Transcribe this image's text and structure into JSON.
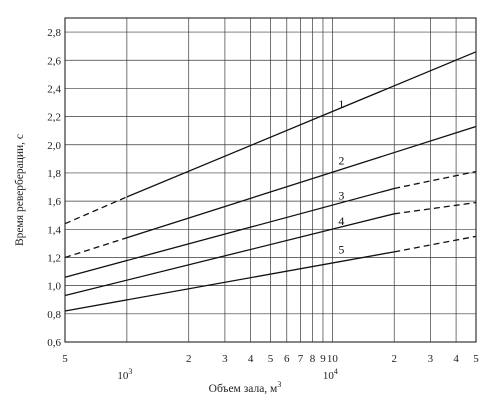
{
  "chart_data": {
    "type": "line",
    "xlabel": "Объем зала, м",
    "xlabel_sup": "3",
    "ylabel": "Время реверберации, с",
    "x_scale": "log",
    "xlim": [
      500,
      50000
    ],
    "ylim": [
      0.6,
      2.9
    ],
    "grid": true,
    "x_ticks": [
      {
        "value": 500,
        "label": "5"
      },
      {
        "value": 1000,
        "label": ""
      },
      {
        "value": 2000,
        "label": "2"
      },
      {
        "value": 3000,
        "label": "3"
      },
      {
        "value": 4000,
        "label": "4"
      },
      {
        "value": 5000,
        "label": "5"
      },
      {
        "value": 6000,
        "label": "6"
      },
      {
        "value": 7000,
        "label": "7"
      },
      {
        "value": 8000,
        "label": "8"
      },
      {
        "value": 9000,
        "label": "9"
      },
      {
        "value": 10000,
        "label": "10"
      },
      {
        "value": 20000,
        "label": "2"
      },
      {
        "value": 30000,
        "label": "3"
      },
      {
        "value": 40000,
        "label": "4"
      },
      {
        "value": 50000,
        "label": "5"
      }
    ],
    "decade_labels": [
      {
        "value": 1000,
        "base": "10",
        "exp": "3"
      },
      {
        "value": 10000,
        "base": "10",
        "exp": "4"
      }
    ],
    "y_ticks": [
      "0,6",
      "0,8",
      "1,0",
      "1,2",
      "1,4",
      "1,6",
      "1,8",
      "2,0",
      "2,2",
      "2,4",
      "2,6",
      "2,8"
    ],
    "y_tick_values": [
      0.6,
      0.8,
      1.0,
      1.2,
      1.4,
      1.6,
      1.8,
      2.0,
      2.2,
      2.4,
      2.6,
      2.8
    ],
    "series": [
      {
        "name": "1",
        "dashed": {
          "x": [
            500,
            1000
          ],
          "y": [
            1.44,
            1.63
          ]
        },
        "solid": {
          "x": [
            1000,
            50000
          ],
          "y": [
            1.63,
            2.66
          ]
        }
      },
      {
        "name": "2",
        "dashed": {
          "x": [
            500,
            1000
          ],
          "y": [
            1.2,
            1.34
          ]
        },
        "solid": {
          "x": [
            1000,
            50000
          ],
          "y": [
            1.34,
            2.13
          ]
        }
      },
      {
        "name": "3",
        "solid": {
          "x": [
            500,
            20000
          ],
          "y": [
            1.06,
            1.69
          ]
        },
        "dashed": {
          "x": [
            20000,
            50000
          ],
          "y": [
            1.69,
            1.81
          ]
        }
      },
      {
        "name": "4",
        "solid": {
          "x": [
            500,
            20000
          ],
          "y": [
            0.93,
            1.51
          ]
        },
        "dashed": {
          "x": [
            20000,
            50000
          ],
          "y": [
            1.51,
            1.59
          ]
        }
      },
      {
        "name": "5",
        "solid": {
          "x": [
            500,
            20000
          ],
          "y": [
            0.82,
            1.24
          ]
        },
        "dashed": {
          "x": [
            20000,
            50000
          ],
          "y": [
            1.24,
            1.35
          ]
        }
      }
    ],
    "label_positions": [
      {
        "name": "1",
        "x": 10000,
        "y": 2.26
      },
      {
        "name": "2",
        "x": 10000,
        "y": 1.86
      },
      {
        "name": "3",
        "x": 10000,
        "y": 1.61
      },
      {
        "name": "4",
        "x": 10000,
        "y": 1.43
      },
      {
        "name": "5",
        "x": 10000,
        "y": 1.23
      }
    ]
  }
}
